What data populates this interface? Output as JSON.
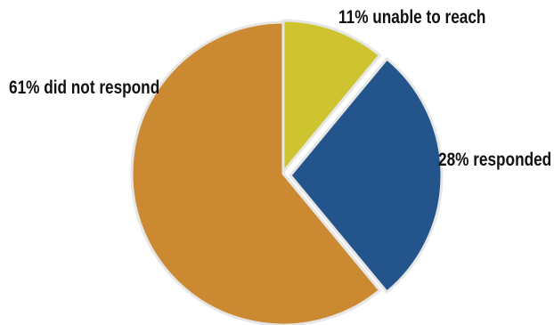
{
  "chart_data": {
    "type": "pie",
    "title": "",
    "legend": "none",
    "slices": [
      {
        "label": "11% unable to reach",
        "value": 11,
        "color": "#cdc42f"
      },
      {
        "label": "28% responded",
        "value": 28,
        "color": "#23548b"
      },
      {
        "label": "61% did not respond",
        "value": 61,
        "color": "#cb8a32"
      }
    ]
  }
}
